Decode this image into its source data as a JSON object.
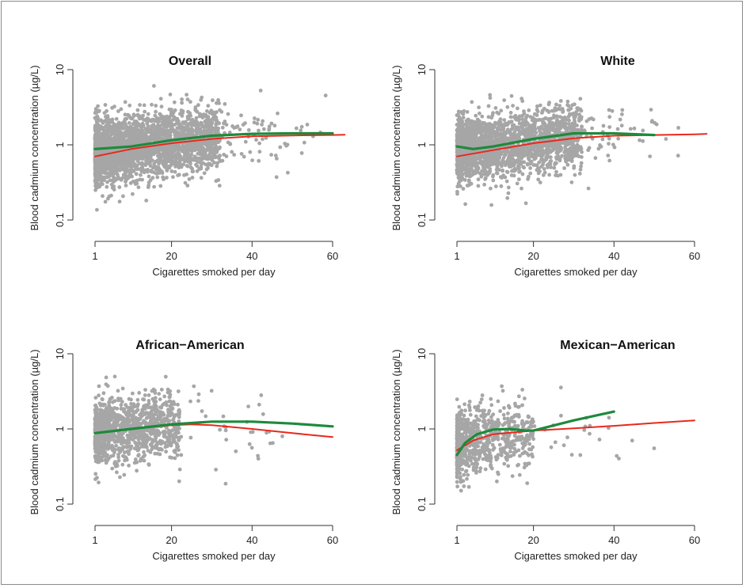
{
  "chart_data": [
    {
      "type": "scatter",
      "title": "Overall",
      "xlabel": "Cigarettes smoked per day",
      "ylabel": "Blood cadmium concentration (µg/L)",
      "xlim": [
        1,
        60
      ],
      "xticks": [
        1,
        20,
        40,
        60
      ],
      "ylim": [
        0.1,
        10
      ],
      "yscale": "log",
      "yticks": [
        0.1,
        1,
        10
      ],
      "ytick_labels": [
        "0.1",
        "1",
        "10"
      ],
      "point_color": "#a6a6a6",
      "points": {
        "x_range": [
          1,
          60
        ],
        "median_by_x": [
          [
            1,
            0.8
          ],
          [
            10,
            0.9
          ],
          [
            20,
            1.05
          ],
          [
            30,
            1.2
          ],
          [
            40,
            1.3
          ],
          [
            60,
            1.3
          ]
        ],
        "spread_y": [
          0.1,
          8
        ]
      },
      "series": [
        {
          "color": "#1e8a3c",
          "x": [
            1,
            10,
            20,
            30,
            40,
            50,
            60
          ],
          "y": [
            0.88,
            0.95,
            1.15,
            1.32,
            1.4,
            1.42,
            1.42
          ]
        },
        {
          "color": "#e8291c",
          "x": [
            1,
            10,
            20,
            30,
            40,
            50,
            60,
            63
          ],
          "y": [
            0.7,
            0.88,
            1.05,
            1.2,
            1.3,
            1.33,
            1.35,
            1.36
          ]
        }
      ]
    },
    {
      "type": "scatter",
      "title": "White",
      "xlabel": "Cigarettes smoked per day",
      "ylabel": "Blood cadmium concentration (µg/L)",
      "xlim": [
        1,
        60
      ],
      "xticks": [
        1,
        20,
        40,
        60
      ],
      "ylim": [
        0.1,
        10
      ],
      "yscale": "log",
      "yticks": [
        0.1,
        1,
        10
      ],
      "ytick_labels": [
        "0.1",
        "1",
        "10"
      ],
      "point_color": "#a6a6a6",
      "points": {
        "x_range": [
          1,
          60
        ],
        "median_by_x": [
          [
            1,
            0.85
          ],
          [
            10,
            0.95
          ],
          [
            20,
            1.1
          ],
          [
            30,
            1.3
          ],
          [
            40,
            1.35
          ],
          [
            60,
            1.3
          ]
        ],
        "spread_y": [
          0.1,
          8
        ]
      },
      "series": [
        {
          "color": "#1e8a3c",
          "x": [
            1,
            5,
            10,
            20,
            30,
            40,
            50
          ],
          "y": [
            0.95,
            0.88,
            0.95,
            1.2,
            1.42,
            1.42,
            1.35
          ]
        },
        {
          "color": "#e8291c",
          "x": [
            1,
            10,
            20,
            30,
            40,
            50,
            60,
            63
          ],
          "y": [
            0.7,
            0.85,
            1.05,
            1.22,
            1.32,
            1.35,
            1.38,
            1.4
          ]
        }
      ]
    },
    {
      "type": "scatter",
      "title": "African−American",
      "xlabel": "Cigarettes smoked per day",
      "ylabel": "Blood cadmium concentration (µg/L)",
      "xlim": [
        1,
        60
      ],
      "xticks": [
        1,
        20,
        40,
        60
      ],
      "ylim": [
        0.1,
        10
      ],
      "yscale": "log",
      "yticks": [
        0.1,
        1,
        10
      ],
      "ytick_labels": [
        "0.1",
        "1",
        "10"
      ],
      "point_color": "#a6a6a6",
      "points": {
        "x_range": [
          1,
          60
        ],
        "median_by_x": [
          [
            1,
            0.9
          ],
          [
            10,
            1.0
          ],
          [
            20,
            1.1
          ],
          [
            30,
            1.1
          ],
          [
            40,
            1.0
          ],
          [
            60,
            0.8
          ]
        ],
        "spread_y": [
          0.15,
          6
        ]
      },
      "series": [
        {
          "color": "#1e8a3c",
          "x": [
            1,
            10,
            20,
            30,
            40,
            50,
            60
          ],
          "y": [
            0.88,
            1.0,
            1.15,
            1.25,
            1.25,
            1.18,
            1.08
          ]
        },
        {
          "color": "#e8291c",
          "x": [
            1,
            10,
            20,
            25,
            30,
            40,
            50,
            60
          ],
          "y": [
            0.88,
            1.0,
            1.12,
            1.15,
            1.12,
            1.0,
            0.88,
            0.78
          ]
        }
      ]
    },
    {
      "type": "scatter",
      "title": "Mexican−American",
      "xlabel": "Cigarettes smoked per day",
      "ylabel": "Blood cadmium concentration (µg/L)",
      "xlim": [
        1,
        60
      ],
      "xticks": [
        1,
        20,
        40,
        60
      ],
      "ylim": [
        0.1,
        10
      ],
      "yscale": "log",
      "yticks": [
        0.1,
        1,
        10
      ],
      "ytick_labels": [
        "0.1",
        "1",
        "10"
      ],
      "point_color": "#a6a6a6",
      "points": {
        "x_range": [
          1,
          56
        ],
        "median_by_x": [
          [
            1,
            0.6
          ],
          [
            5,
            0.7
          ],
          [
            10,
            0.75
          ],
          [
            15,
            0.8
          ],
          [
            20,
            0.9
          ],
          [
            30,
            1.0
          ],
          [
            55,
            0.85
          ]
        ],
        "spread_y": [
          0.12,
          4.5
        ]
      },
      "series": [
        {
          "color": "#1e8a3c",
          "x": [
            1,
            3,
            6,
            10,
            14,
            18,
            20,
            30,
            40
          ],
          "y": [
            0.45,
            0.65,
            0.85,
            0.98,
            1.0,
            0.95,
            0.95,
            1.3,
            1.7
          ]
        },
        {
          "color": "#e8291c",
          "x": [
            1,
            5,
            10,
            20,
            30,
            40,
            50,
            60
          ],
          "y": [
            0.52,
            0.7,
            0.85,
            0.95,
            1.02,
            1.1,
            1.2,
            1.3
          ]
        }
      ]
    }
  ]
}
